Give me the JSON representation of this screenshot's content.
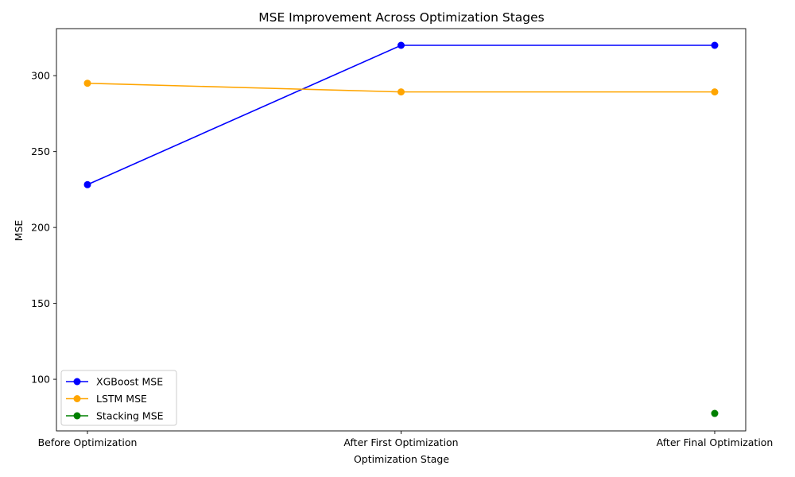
{
  "chart_data": {
    "type": "line",
    "title": "MSE Improvement Across Optimization Stages",
    "xlabel": "Optimization Stage",
    "ylabel": "MSE",
    "categories": [
      "Before Optimization",
      "After First Optimization",
      "After Final Optimization"
    ],
    "ylim": [
      66,
      331
    ],
    "yticks": [
      100,
      150,
      200,
      250,
      300
    ],
    "grid": false,
    "legend_position": "lower-left",
    "series": [
      {
        "name": "XGBoost MSE",
        "color": "#0000ff",
        "values": [
          228.2,
          320.0,
          320.0
        ]
      },
      {
        "name": "LSTM MSE",
        "color": "#ffa500",
        "values": [
          295.0,
          289.3,
          289.3
        ]
      },
      {
        "name": "Stacking MSE",
        "color": "#008000",
        "values": [
          null,
          null,
          77.5
        ]
      }
    ]
  }
}
